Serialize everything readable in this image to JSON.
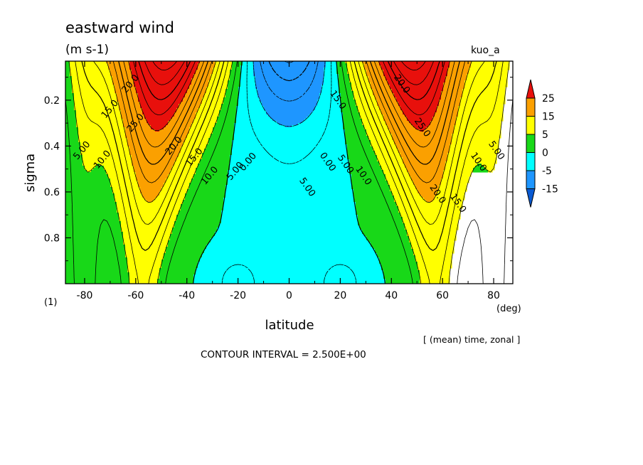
{
  "chart_data": {
    "type": "heatmap",
    "title": "eastward wind",
    "units": "(m s-1)",
    "run_label": "kuo_a",
    "xlabel": "latitude",
    "x_units": "(deg)",
    "ylabel": "sigma",
    "y_axis_marker": "(1)",
    "x_ticks": [
      -80,
      -60,
      -40,
      -20,
      0,
      20,
      40,
      60,
      80
    ],
    "x_tick_labels": [
      "-80",
      "-60",
      "-40",
      "-20",
      "0",
      "20",
      "40",
      "60",
      "80"
    ],
    "y_ticks": [
      0.2,
      0.4,
      0.6,
      0.8
    ],
    "y_tick_labels": [
      "0.2",
      "0.4",
      "0.6",
      "0.8"
    ],
    "xlim": [
      -87.5,
      87.5
    ],
    "ylim": [
      1.0,
      0.03
    ],
    "y_inverted": true,
    "averaging_note": "[ (mean) time, zonal ]",
    "contour_interval_note": "CONTOUR INTERVAL = 2.500E+00",
    "contour_interval": 2.5,
    "colorbar": {
      "labels": [
        "25",
        "15",
        "5",
        "0",
        "-5",
        "-15"
      ],
      "colors": [
        "#e8100c",
        "#fba000",
        "#ffff00",
        "#18d818",
        "#00ffff",
        "#1e96ff",
        "#0a5ad2"
      ]
    },
    "contour_labels": [
      {
        "text": "20.0",
        "lat": -62,
        "sigma": 0.13
      },
      {
        "text": "15.0",
        "lat": -70,
        "sigma": 0.24
      },
      {
        "text": "25.0",
        "lat": -60,
        "sigma": 0.3
      },
      {
        "text": "5.00",
        "lat": -81,
        "sigma": 0.42
      },
      {
        "text": "10.0",
        "lat": -73,
        "sigma": 0.46
      },
      {
        "text": "20.0",
        "lat": -45,
        "sigma": 0.4
      },
      {
        "text": "15.0",
        "lat": -37,
        "sigma": 0.45
      },
      {
        "text": "10.0",
        "lat": -31,
        "sigma": 0.53
      },
      {
        "text": "5.00",
        "lat": -21,
        "sigma": 0.51
      },
      {
        "text": "0.00",
        "lat": -16,
        "sigma": 0.47
      },
      {
        "text": "5.00",
        "lat": 7,
        "sigma": 0.58
      },
      {
        "text": "0.00",
        "lat": 15,
        "sigma": 0.47
      },
      {
        "text": "5.00",
        "lat": 22,
        "sigma": 0.48
      },
      {
        "text": "10.0",
        "lat": 29,
        "sigma": 0.53
      },
      {
        "text": "15.0",
        "lat": 19,
        "sigma": 0.2
      },
      {
        "text": "20.0",
        "lat": 44,
        "sigma": 0.13
      },
      {
        "text": "25.0",
        "lat": 52,
        "sigma": 0.32
      },
      {
        "text": "20.0",
        "lat": 58,
        "sigma": 0.61
      },
      {
        "text": "15.0",
        "lat": 66,
        "sigma": 0.65
      },
      {
        "text": "10.0",
        "lat": 74,
        "sigma": 0.47
      },
      {
        "text": "5.00",
        "lat": 81,
        "sigma": 0.42
      }
    ],
    "grid": false,
    "legend_placement": "right"
  }
}
